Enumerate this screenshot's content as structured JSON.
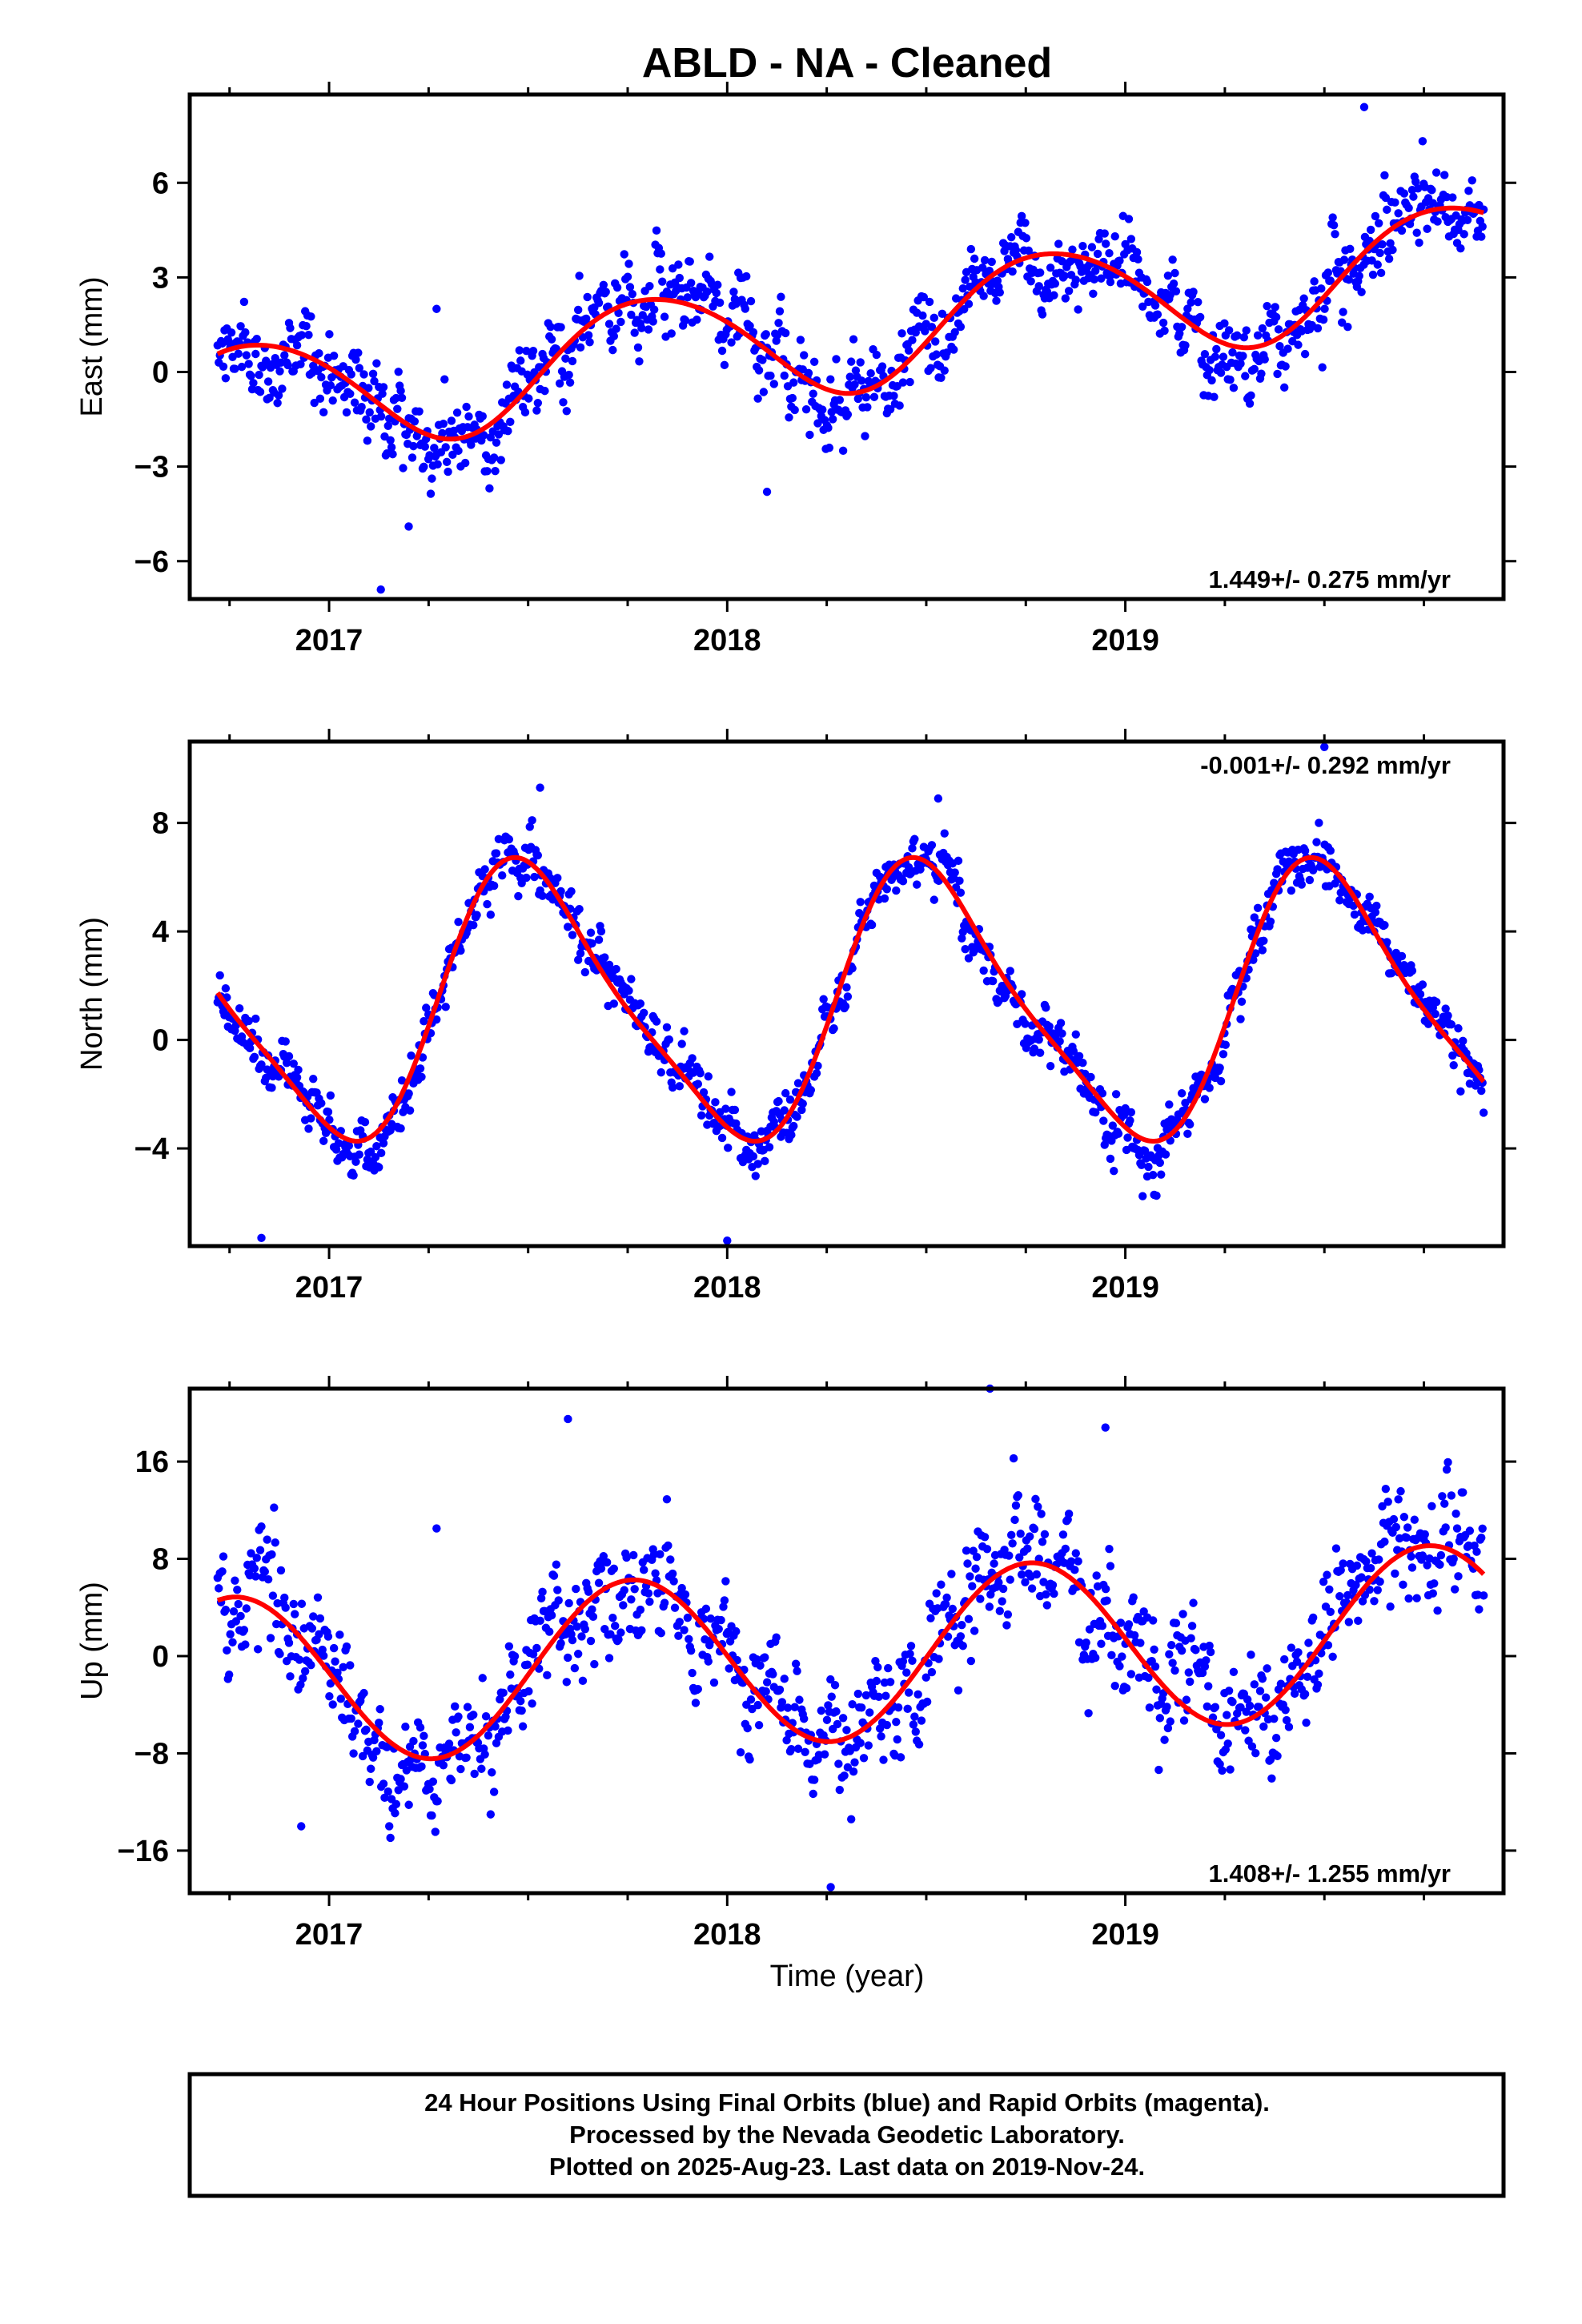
{
  "title": "ABLD  - NA - Cleaned",
  "xlabel": "Time (year)",
  "footer": {
    "line1": "24 Hour Positions Using Final Orbits (blue) and Rapid Orbits (magenta).",
    "line2": "Processed by the Nevada Geodetic Laboratory.",
    "line3": "Plotted on 2025-Aug-23. Last data on 2019-Nov-24."
  },
  "colors": {
    "final_orbits": "#0000ff",
    "model_fit": "#ff0000",
    "frame": "#000000"
  },
  "chart_data": [
    {
      "type": "scatter",
      "panel": "east",
      "ylabel": "East (mm)",
      "rate_label": "1.449+/- 0.275 mm/yr",
      "xlim": [
        2016.65,
        2019.95
      ],
      "ylim": [
        -7.2,
        8.8
      ],
      "yticks": [
        6,
        3,
        0,
        -3,
        -6
      ],
      "ytick_labels": [
        "6",
        "3",
        "0",
        "−3",
        "−6"
      ],
      "xticks": [
        2017,
        2018,
        2019
      ],
      "xtick_labels": [
        "2017",
        "2018",
        "2019"
      ],
      "x_start": 2016.72,
      "x_end": 2019.9,
      "trend": {
        "value_at_start": -1.0,
        "rate": 1.449
      },
      "seasonal": [
        {
          "period": 1,
          "amp": 1.85,
          "phase": 2019.81
        },
        {
          "period": 0.5,
          "amp": 0.15,
          "phase": 2017.1
        }
      ],
      "scatter": 0.95,
      "n_points": 1100,
      "seed": 11,
      "outliers": [
        [
          2019.6,
          8.4
        ],
        [
          2017.13,
          -6.9
        ],
        [
          2017.27,
          2.0
        ],
        [
          2017.2,
          -4.9
        ],
        [
          2018.1,
          -3.8
        ]
      ]
    },
    {
      "type": "scatter",
      "panel": "north",
      "ylabel": "North (mm)",
      "rate_label": "-0.001+/- 0.292 mm/yr",
      "xlim": [
        2016.65,
        2019.95
      ],
      "ylim": [
        -7.6,
        11.0
      ],
      "yticks": [
        8,
        4,
        0,
        -4
      ],
      "ytick_labels": [
        "8",
        "4",
        "0",
        "−4"
      ],
      "xticks": [
        2017,
        2018,
        2019
      ],
      "xtick_labels": [
        "2017",
        "2018",
        "2019"
      ],
      "x_start": 2016.72,
      "x_end": 2019.9,
      "trend": {
        "value_at_start": 1.25,
        "rate": -0.001
      },
      "seasonal": [
        {
          "period": 1,
          "amp": 4.9,
          "phase": 2017.51
        },
        {
          "period": 0.5,
          "amp": 1.0,
          "phase": 2017.41
        }
      ],
      "scatter": 0.75,
      "n_points": 1100,
      "seed": 23,
      "outliers": [
        [
          2019.5,
          10.8
        ],
        [
          2016.83,
          -7.3
        ],
        [
          2018.0,
          -7.4
        ],
        [
          2017.53,
          9.3
        ],
        [
          2018.53,
          8.9
        ]
      ]
    },
    {
      "type": "scatter",
      "panel": "up",
      "ylabel": "Up (mm)",
      "rate_label": "1.408+/- 1.255 mm/yr",
      "xlim": [
        2016.65,
        2019.95
      ],
      "ylim": [
        -19.5,
        22.0
      ],
      "yticks": [
        16,
        8,
        0,
        -8,
        -16
      ],
      "ytick_labels": [
        "16",
        "8",
        "0",
        "−8",
        "−16"
      ],
      "xticks": [
        2017,
        2018,
        2019
      ],
      "xtick_labels": [
        "2017",
        "2018",
        "2019"
      ],
      "x_start": 2016.72,
      "x_end": 2019.9,
      "trend": {
        "value_at_start": -2.2,
        "rate": 1.408
      },
      "seasonal": [
        {
          "period": 1,
          "amp": 7.0,
          "phase": 2017.76
        }
      ],
      "scatter": 3.4,
      "n_points": 1100,
      "seed": 37,
      "outliers": [
        [
          2018.66,
          22.0
        ],
        [
          2018.26,
          -19.0
        ],
        [
          2017.6,
          19.5
        ],
        [
          2018.95,
          18.8
        ],
        [
          2017.27,
          10.5
        ],
        [
          2016.93,
          -14.0
        ]
      ]
    }
  ]
}
